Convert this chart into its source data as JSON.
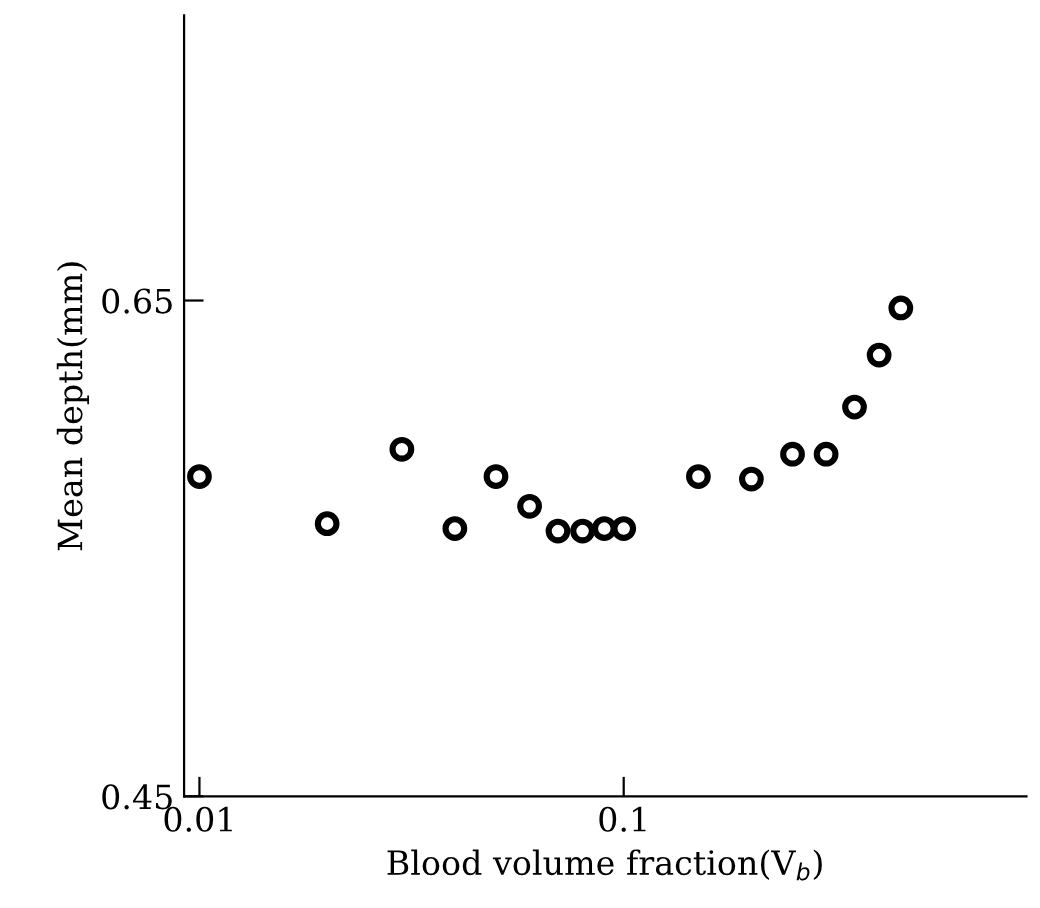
{
  "chart_data": {
    "type": "scatter",
    "xlabel": "Blood volume fraction(V$_{b}$)",
    "ylabel": "Mean depth(mm)",
    "x": [
      0.01,
      0.02,
      0.03,
      0.04,
      0.05,
      0.06,
      0.07,
      0.08,
      0.09,
      0.1,
      0.15,
      0.2,
      0.25,
      0.3,
      0.35,
      0.4,
      0.45
    ],
    "values": [
      0.579,
      0.56,
      0.59,
      0.558,
      0.579,
      0.567,
      0.557,
      0.557,
      0.558,
      0.558,
      0.579,
      0.578,
      0.588,
      0.588,
      0.607,
      0.628,
      0.647
    ],
    "color": "#000000",
    "marker": "circle",
    "log": "x",
    "xlim": [
      0.0092,
      0.89
    ],
    "ylim": [
      0.45,
      0.765
    ],
    "xticks": [
      0.01,
      0.1
    ],
    "yticks": [
      0.45,
      0.65
    ],
    "grid": false,
    "legend": false
  }
}
